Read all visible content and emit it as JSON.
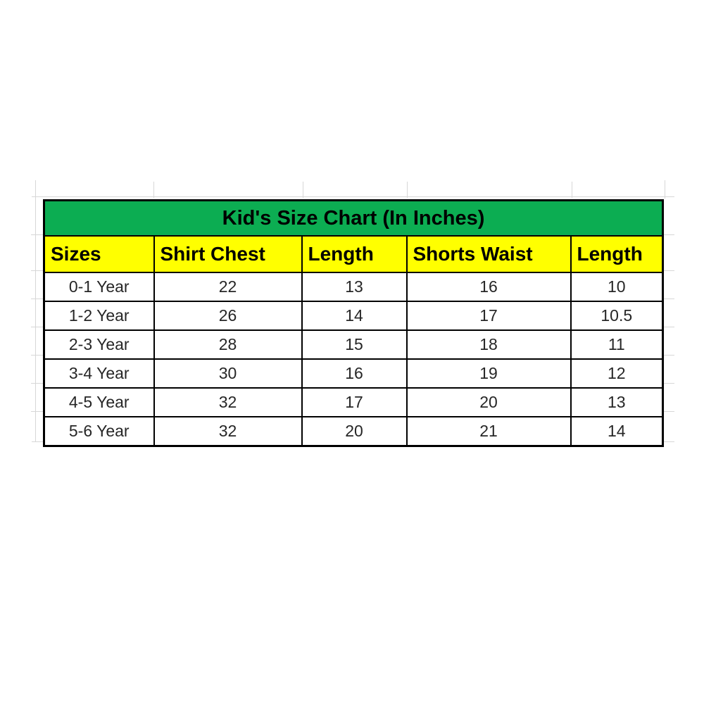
{
  "chart_data": {
    "type": "table",
    "title": "Kid's Size Chart (In Inches)",
    "columns": [
      "Sizes",
      "Shirt Chest",
      "Length",
      "Shorts Waist",
      "Length"
    ],
    "rows": [
      [
        "0-1 Year",
        "22",
        "13",
        "16",
        "10"
      ],
      [
        "1-2 Year",
        "26",
        "14",
        "17",
        "10.5"
      ],
      [
        "2-3 Year",
        "28",
        "15",
        "18",
        "11"
      ],
      [
        "3-4 Year",
        "30",
        "16",
        "19",
        "12"
      ],
      [
        "4-5 Year",
        "32",
        "17",
        "20",
        "13"
      ],
      [
        "5-6 Year",
        "32",
        "20",
        "21",
        "14"
      ]
    ]
  },
  "colors": {
    "title_background": "#0cad52",
    "header_background": "#ffff00",
    "border": "#000000",
    "data_text": "#262626",
    "gridline": "#d7d7d7",
    "page_background": "#ffffff"
  }
}
